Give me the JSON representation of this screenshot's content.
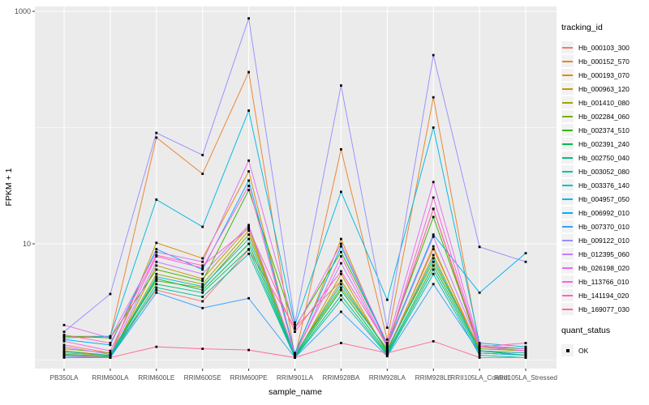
{
  "panel": {
    "bg": "#EBEBEB",
    "grid": "#FFFFFF",
    "key_bg": "#F2F2F2",
    "tick_color": "#333333",
    "tick_label_color": "#4D4D4D"
  },
  "legend": {
    "tracking_title": "tracking_id",
    "quant_title": "quant_status",
    "quant_items": [
      {
        "label": "OK"
      }
    ]
  },
  "chart_data": {
    "type": "line",
    "title": "",
    "xlabel": "sample_name",
    "ylabel": "FPKM + 1",
    "y_scale": "log10",
    "ylim": [
      1,
      1000
    ],
    "y_ticks": [
      10,
      1000
    ],
    "y_tick_labels": [
      "10",
      "1000"
    ],
    "y_minor": [
      1,
      100
    ],
    "grid": "on",
    "legend_position": "right",
    "point_color": "#000000",
    "point_shape": "square",
    "categories": [
      "PB350LA",
      "RRIM600LA",
      "RRIM600LE",
      "RRIM600SE",
      "RRIM600PE",
      "RRIM901LA",
      "RRIM928BA",
      "RRIM928LA",
      "RRIM928LE",
      "RRII105LA_Control",
      "RRII105LA_Stressed"
    ],
    "series": [
      {
        "name": "Hb_000103_300",
        "color": "#F8766D",
        "values": [
          1.35,
          1.15,
          4.0,
          3.2,
          8.9,
          1.9,
          4.8,
          1.2,
          9.0,
          1.25,
          1.2
        ]
      },
      {
        "name": "Hb_000152_570",
        "color": "#EA8331",
        "values": [
          1.6,
          1.6,
          82,
          40,
          300,
          1.05,
          65,
          1.5,
          182,
          1.3,
          1.2
        ]
      },
      {
        "name": "Hb_000193_070",
        "color": "#D89000",
        "values": [
          1.2,
          1.1,
          10.2,
          7.5,
          42,
          1.1,
          11,
          1.3,
          20,
          1.2,
          1.15
        ]
      },
      {
        "name": "Hb_000963_120",
        "color": "#C09B00",
        "values": [
          1.1,
          1.05,
          6.5,
          5.0,
          14,
          1.05,
          5.5,
          1.15,
          9.5,
          1.15,
          1.1
        ]
      },
      {
        "name": "Hb_001410_080",
        "color": "#A3A500",
        "values": [
          1.15,
          1.1,
          5.5,
          4.5,
          13,
          1.1,
          4.8,
          1.2,
          8.0,
          1.2,
          1.1
        ]
      },
      {
        "name": "Hb_002284_060",
        "color": "#7CAE00",
        "values": [
          1.25,
          1.15,
          4.8,
          4.2,
          12,
          1.12,
          4.2,
          1.25,
          7.0,
          1.25,
          1.2
        ]
      },
      {
        "name": "Hb_002374_510",
        "color": "#39B600",
        "values": [
          1.6,
          1.55,
          6.0,
          4.8,
          29,
          1.9,
          8.5,
          1.4,
          17,
          1.3,
          1.25
        ]
      },
      {
        "name": "Hb_002391_240",
        "color": "#00BB4E",
        "values": [
          1.12,
          1.08,
          5.0,
          4.0,
          10,
          1.08,
          4.0,
          1.15,
          6.5,
          1.2,
          1.1
        ]
      },
      {
        "name": "Hb_002750_040",
        "color": "#00BF7D",
        "values": [
          1.1,
          1.06,
          4.5,
          3.8,
          9.0,
          1.06,
          3.6,
          1.12,
          6.0,
          1.15,
          1.1
        ]
      },
      {
        "name": "Hb_003052_080",
        "color": "#00C1A3",
        "values": [
          1.05,
          1.05,
          4.2,
          3.5,
          8.2,
          1.05,
          3.3,
          1.1,
          5.5,
          1.1,
          1.05
        ]
      },
      {
        "name": "Hb_003376_140",
        "color": "#00BFC4",
        "values": [
          1.18,
          1.1,
          5.2,
          4.3,
          11,
          1.1,
          4.5,
          1.2,
          7.5,
          1.2,
          1.15
        ]
      },
      {
        "name": "Hb_004957_050",
        "color": "#00BAE0",
        "values": [
          1.55,
          1.6,
          24,
          14,
          140,
          2.0,
          28,
          3.3,
          100,
          1.4,
          1.3
        ]
      },
      {
        "name": "Hb_006992_010",
        "color": "#00B0F6",
        "values": [
          1.5,
          1.35,
          9.0,
          6.0,
          35,
          1.15,
          9.5,
          1.35,
          12,
          3.8,
          8.3
        ]
      },
      {
        "name": "Hb_007370_010",
        "color": "#35A2FF",
        "values": [
          1.08,
          1.05,
          3.8,
          2.8,
          3.4,
          1.05,
          2.6,
          1.08,
          4.5,
          1.15,
          1.1
        ]
      },
      {
        "name": "Hb_009122_010",
        "color": "#9590FF",
        "values": [
          1.75,
          3.7,
          90,
          58,
          870,
          2.1,
          230,
          1.9,
          420,
          9.4,
          7.0
        ]
      },
      {
        "name": "Hb_012395_060",
        "color": "#C77CFF",
        "values": [
          1.3,
          1.12,
          7.0,
          5.5,
          14.5,
          1.12,
          6.8,
          1.3,
          11.5,
          1.3,
          1.2
        ]
      },
      {
        "name": "Hb_026198_020",
        "color": "#E76BF3",
        "values": [
          2.0,
          1.55,
          8.5,
          7.0,
          52,
          1.85,
          10,
          1.4,
          34,
          1.35,
          1.25
        ]
      },
      {
        "name": "Hb_113766_010",
        "color": "#FA62DB",
        "values": [
          1.45,
          1.2,
          7.8,
          6.2,
          31.5,
          1.1,
          7.8,
          1.3,
          25,
          1.3,
          1.2
        ]
      },
      {
        "name": "Hb_141194_020",
        "color": "#FF62BC",
        "values": [
          1.65,
          1.4,
          8.0,
          6.5,
          13.6,
          1.75,
          5.8,
          1.35,
          20,
          1.3,
          1.4
        ]
      },
      {
        "name": "Hb_169077_030",
        "color": "#FF6A98",
        "values": [
          1.1,
          1.05,
          1.3,
          1.25,
          1.22,
          1.05,
          1.4,
          1.15,
          1.45,
          1.05,
          1.05
        ]
      }
    ]
  }
}
